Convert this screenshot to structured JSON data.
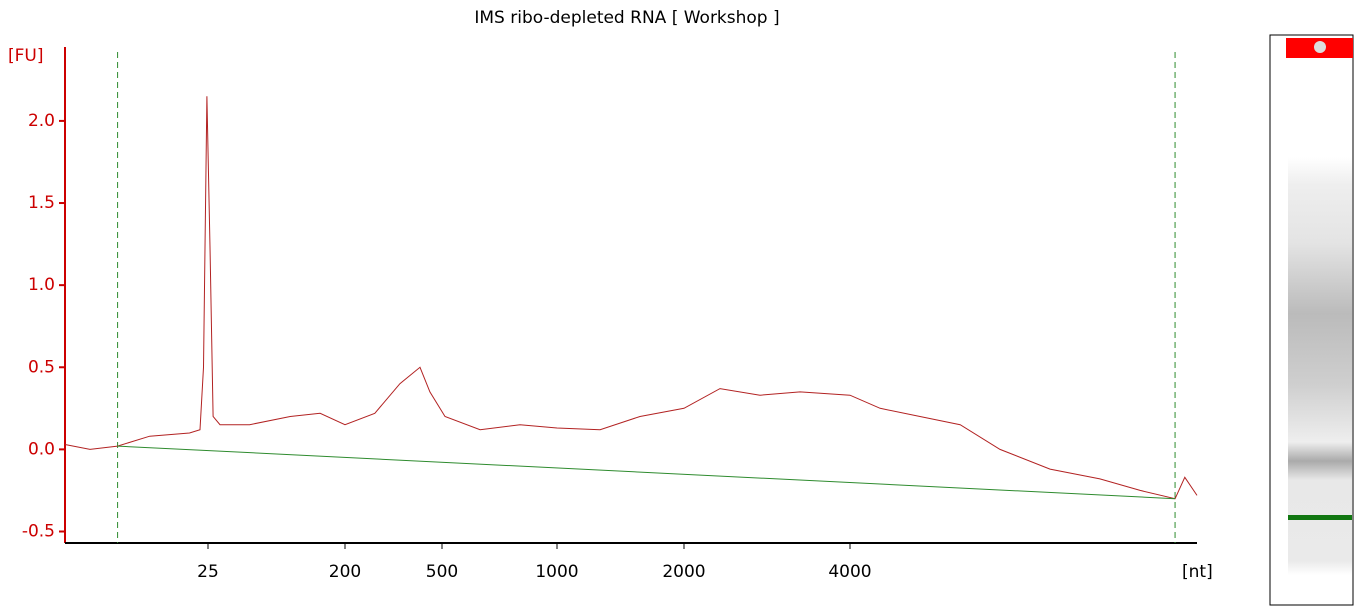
{
  "chart_data": {
    "type": "line",
    "title": "IMS ribo-depleted RNA  [ Workshop ]",
    "y_label": "[FU]",
    "x_label": "[nt]",
    "xlim": [
      15,
      8000
    ],
    "xticks": [
      25,
      200,
      500,
      1000,
      2000,
      4000
    ],
    "ylim": [
      -0.57,
      2.45
    ],
    "yticks": [
      {
        "value": -0.5,
        "label": "-0.5"
      },
      {
        "value": 0,
        "label": "0.0"
      },
      0.5,
      {
        "value": 1,
        "label": "1.0"
      },
      1.5,
      {
        "value": 2,
        "label": "2.0"
      }
    ],
    "series": [
      {
        "color": "#b22222",
        "x": [
          15,
          16.4,
          18.1,
          20.3,
          23.4,
          24.3,
          24.6,
          24.9,
          25.8,
          27,
          30,
          47,
          87,
          137,
          200,
          265,
          336,
          406,
          446,
          509,
          629,
          800,
          1000,
          1265,
          1573,
          2000,
          2324,
          2747,
          3247,
          4000,
          4248,
          4600,
          4985,
          5397,
          5964,
          6589,
          7140,
          7657,
          7808,
          8000
        ],
        "values": [
          0.03,
          0.0,
          0.02,
          0.08,
          0.1,
          0.12,
          0.5,
          2.15,
          1.2,
          0.2,
          0.15,
          0.15,
          0.2,
          0.22,
          0.15,
          0.22,
          0.4,
          0.5,
          0.35,
          0.2,
          0.12,
          0.15,
          0.13,
          0.12,
          0.2,
          0.25,
          0.37,
          0.33,
          0.35,
          0.33,
          0.25,
          0.2,
          0.15,
          0.0,
          -0.12,
          -0.18,
          -0.25,
          -0.3,
          -0.17,
          -0.28
        ]
      },
      {
        "color": "#2e8b2e",
        "x": [
          18.1,
          7657
        ],
        "values": [
          0.02,
          -0.3
        ]
      }
    ],
    "markers": [
      18.1,
      7657
    ],
    "marker_color": "#2e8b2e",
    "axis_color": "#cc0000"
  }
}
